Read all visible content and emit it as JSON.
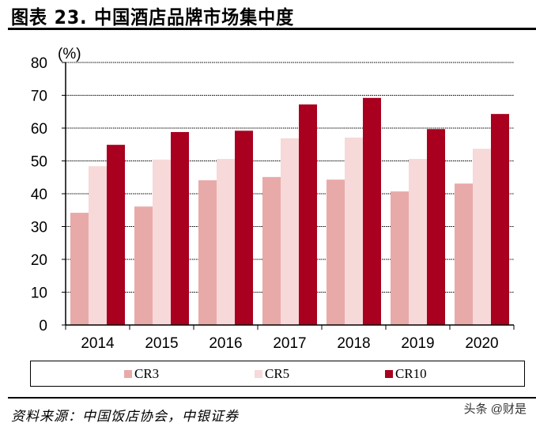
{
  "header": {
    "title": "图表 23. 中国酒店品牌市场集中度"
  },
  "footer": {
    "source": "资料来源：中国饭店协会，中银证券",
    "watermark": "头条 @财是"
  },
  "legend": [
    {
      "label": "CR3",
      "color": "#e8aaa9"
    },
    {
      "label": "CR5",
      "color": "#f6d9d8"
    },
    {
      "label": "CR10",
      "color": "#a8001e"
    }
  ],
  "chart_data": {
    "type": "bar",
    "title": "中国酒店品牌市场集中度",
    "ylabel": "(%)",
    "xlabel": "",
    "ylim": [
      0,
      80
    ],
    "yticks": [
      0,
      10,
      20,
      30,
      40,
      50,
      60,
      70,
      80
    ],
    "grid": "horizontal dotted",
    "legend_position": "bottom",
    "categories": [
      "2014",
      "2015",
      "2016",
      "2017",
      "2018",
      "2019",
      "2020"
    ],
    "series": [
      {
        "name": "CR3",
        "color": "#e8aaa9",
        "values": [
          34.2,
          36.1,
          44.1,
          45.1,
          44.3,
          40.7,
          43.1
        ]
      },
      {
        "name": "CR5",
        "color": "#f6d9d8",
        "values": [
          48.4,
          50.4,
          50.6,
          56.9,
          57.1,
          50.6,
          53.7
        ]
      },
      {
        "name": "CR10",
        "color": "#a8001e",
        "values": [
          54.9,
          58.8,
          59.2,
          67.2,
          69.2,
          59.7,
          64.3
        ]
      }
    ]
  }
}
